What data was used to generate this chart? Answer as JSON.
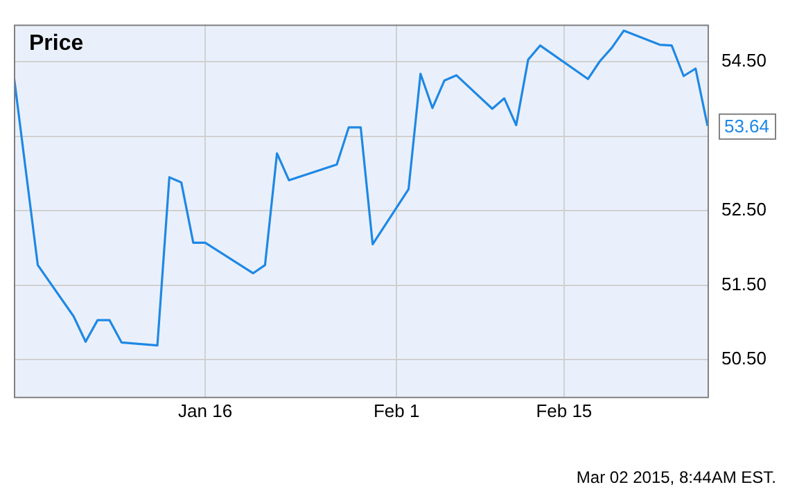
{
  "chart_data": {
    "type": "line",
    "title": "Price",
    "x": [
      "2014-12-31",
      "2015-01-02",
      "2015-01-05",
      "2015-01-06",
      "2015-01-07",
      "2015-01-08",
      "2015-01-09",
      "2015-01-12",
      "2015-01-13",
      "2015-01-14",
      "2015-01-15",
      "2015-01-16",
      "2015-01-20",
      "2015-01-21",
      "2015-01-22",
      "2015-01-23",
      "2015-01-27",
      "2015-01-28",
      "2015-01-29",
      "2015-01-30",
      "2015-02-02",
      "2015-02-03",
      "2015-02-04",
      "2015-02-05",
      "2015-02-06",
      "2015-02-09",
      "2015-02-10",
      "2015-02-11",
      "2015-02-12",
      "2015-02-13",
      "2015-02-17",
      "2015-02-18",
      "2015-02-19",
      "2015-02-20",
      "2015-02-23",
      "2015-02-24",
      "2015-02-25",
      "2015-02-26",
      "2015-02-27"
    ],
    "series": [
      {
        "color": "#1e88e5",
        "values": [
          54.31,
          51.77,
          51.08,
          50.74,
          51.03,
          51.03,
          50.73,
          50.69,
          52.95,
          52.88,
          52.07,
          52.07,
          51.66,
          51.77,
          53.27,
          52.91,
          53.12,
          53.62,
          53.62,
          52.05,
          52.79,
          54.34,
          53.88,
          54.25,
          54.32,
          53.87,
          54.01,
          53.65,
          54.53,
          54.72,
          54.27,
          54.51,
          54.69,
          54.92,
          54.73,
          54.72,
          54.31,
          54.41,
          53.64
        ]
      }
    ],
    "xlim": [
      "2014-12-31",
      "2015-02-27"
    ],
    "xticks": [
      {
        "value": "2015-01-16",
        "label": "Jan 16"
      },
      {
        "value": "2015-02-01",
        "label": "Feb 1"
      },
      {
        "value": "2015-02-15",
        "label": "Feb 15"
      }
    ],
    "ylim": [
      50,
      55
    ],
    "yticks": [
      {
        "value": 50.5,
        "label": "50.50"
      },
      {
        "value": 51.5,
        "label": "51.50"
      },
      {
        "value": 52.5,
        "label": "52.50"
      },
      {
        "value": 53.5,
        "label": null
      },
      {
        "value": 54.5,
        "label": "54.50"
      }
    ],
    "grid": true,
    "legend": false,
    "marker": "none",
    "line_style": "solid",
    "annotations": [
      {
        "text": "53.64",
        "x": "2015-02-27",
        "y": 53.64
      },
      "Mar 02 2015, 8:44AM EST."
    ]
  }
}
